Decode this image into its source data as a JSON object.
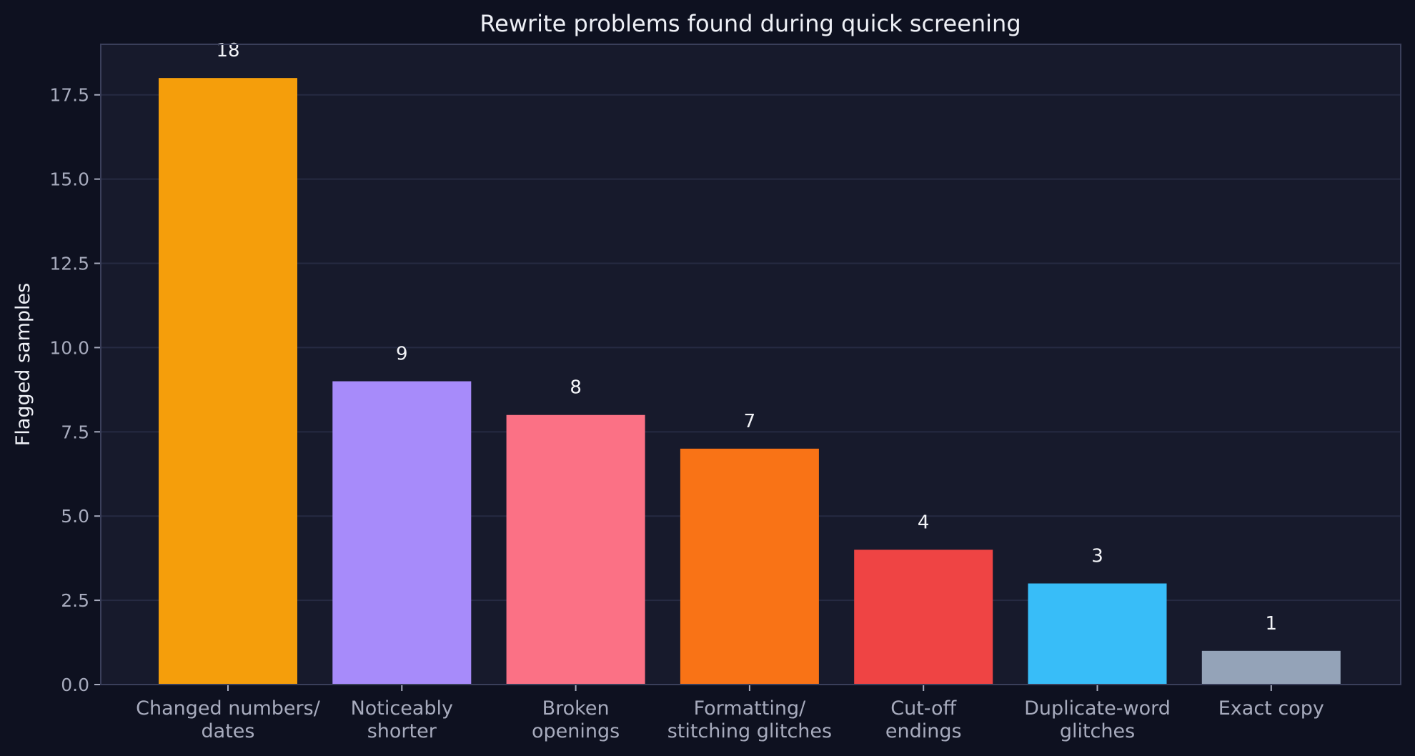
{
  "chart_data": {
    "type": "bar",
    "title": "Rewrite problems found during quick screening",
    "xlabel": "",
    "ylabel": "Flagged samples",
    "ylim": [
      0,
      19
    ],
    "yticks": [
      0.0,
      2.5,
      5.0,
      7.5,
      10.0,
      12.5,
      15.0,
      17.5
    ],
    "ytick_labels": [
      "0.0",
      "2.5",
      "5.0",
      "7.5",
      "10.0",
      "12.5",
      "15.0",
      "17.5"
    ],
    "grid": true,
    "legend": "none",
    "categories": [
      [
        "Changed numbers/",
        "dates"
      ],
      [
        "Noticeably",
        "shorter"
      ],
      [
        "Broken",
        "openings"
      ],
      [
        "Formatting/",
        "stitching glitches"
      ],
      [
        "Cut-off",
        "endings"
      ],
      [
        "Duplicate-word",
        "glitches"
      ],
      [
        "Exact copy"
      ]
    ],
    "values": [
      18,
      9,
      8,
      7,
      4,
      3,
      1
    ],
    "value_labels": [
      "18",
      "9",
      "8",
      "7",
      "4",
      "3",
      "1"
    ],
    "colors": [
      "#f59e0b",
      "#a78bfa",
      "#fb7185",
      "#f97316",
      "#ef4444",
      "#38bdf8",
      "#94a3b8"
    ]
  },
  "theme": {
    "page_background": "#0e1120",
    "plot_background": "#171a2c",
    "grid_color": "#262a42",
    "axis_color": "#3a3f5a"
  }
}
